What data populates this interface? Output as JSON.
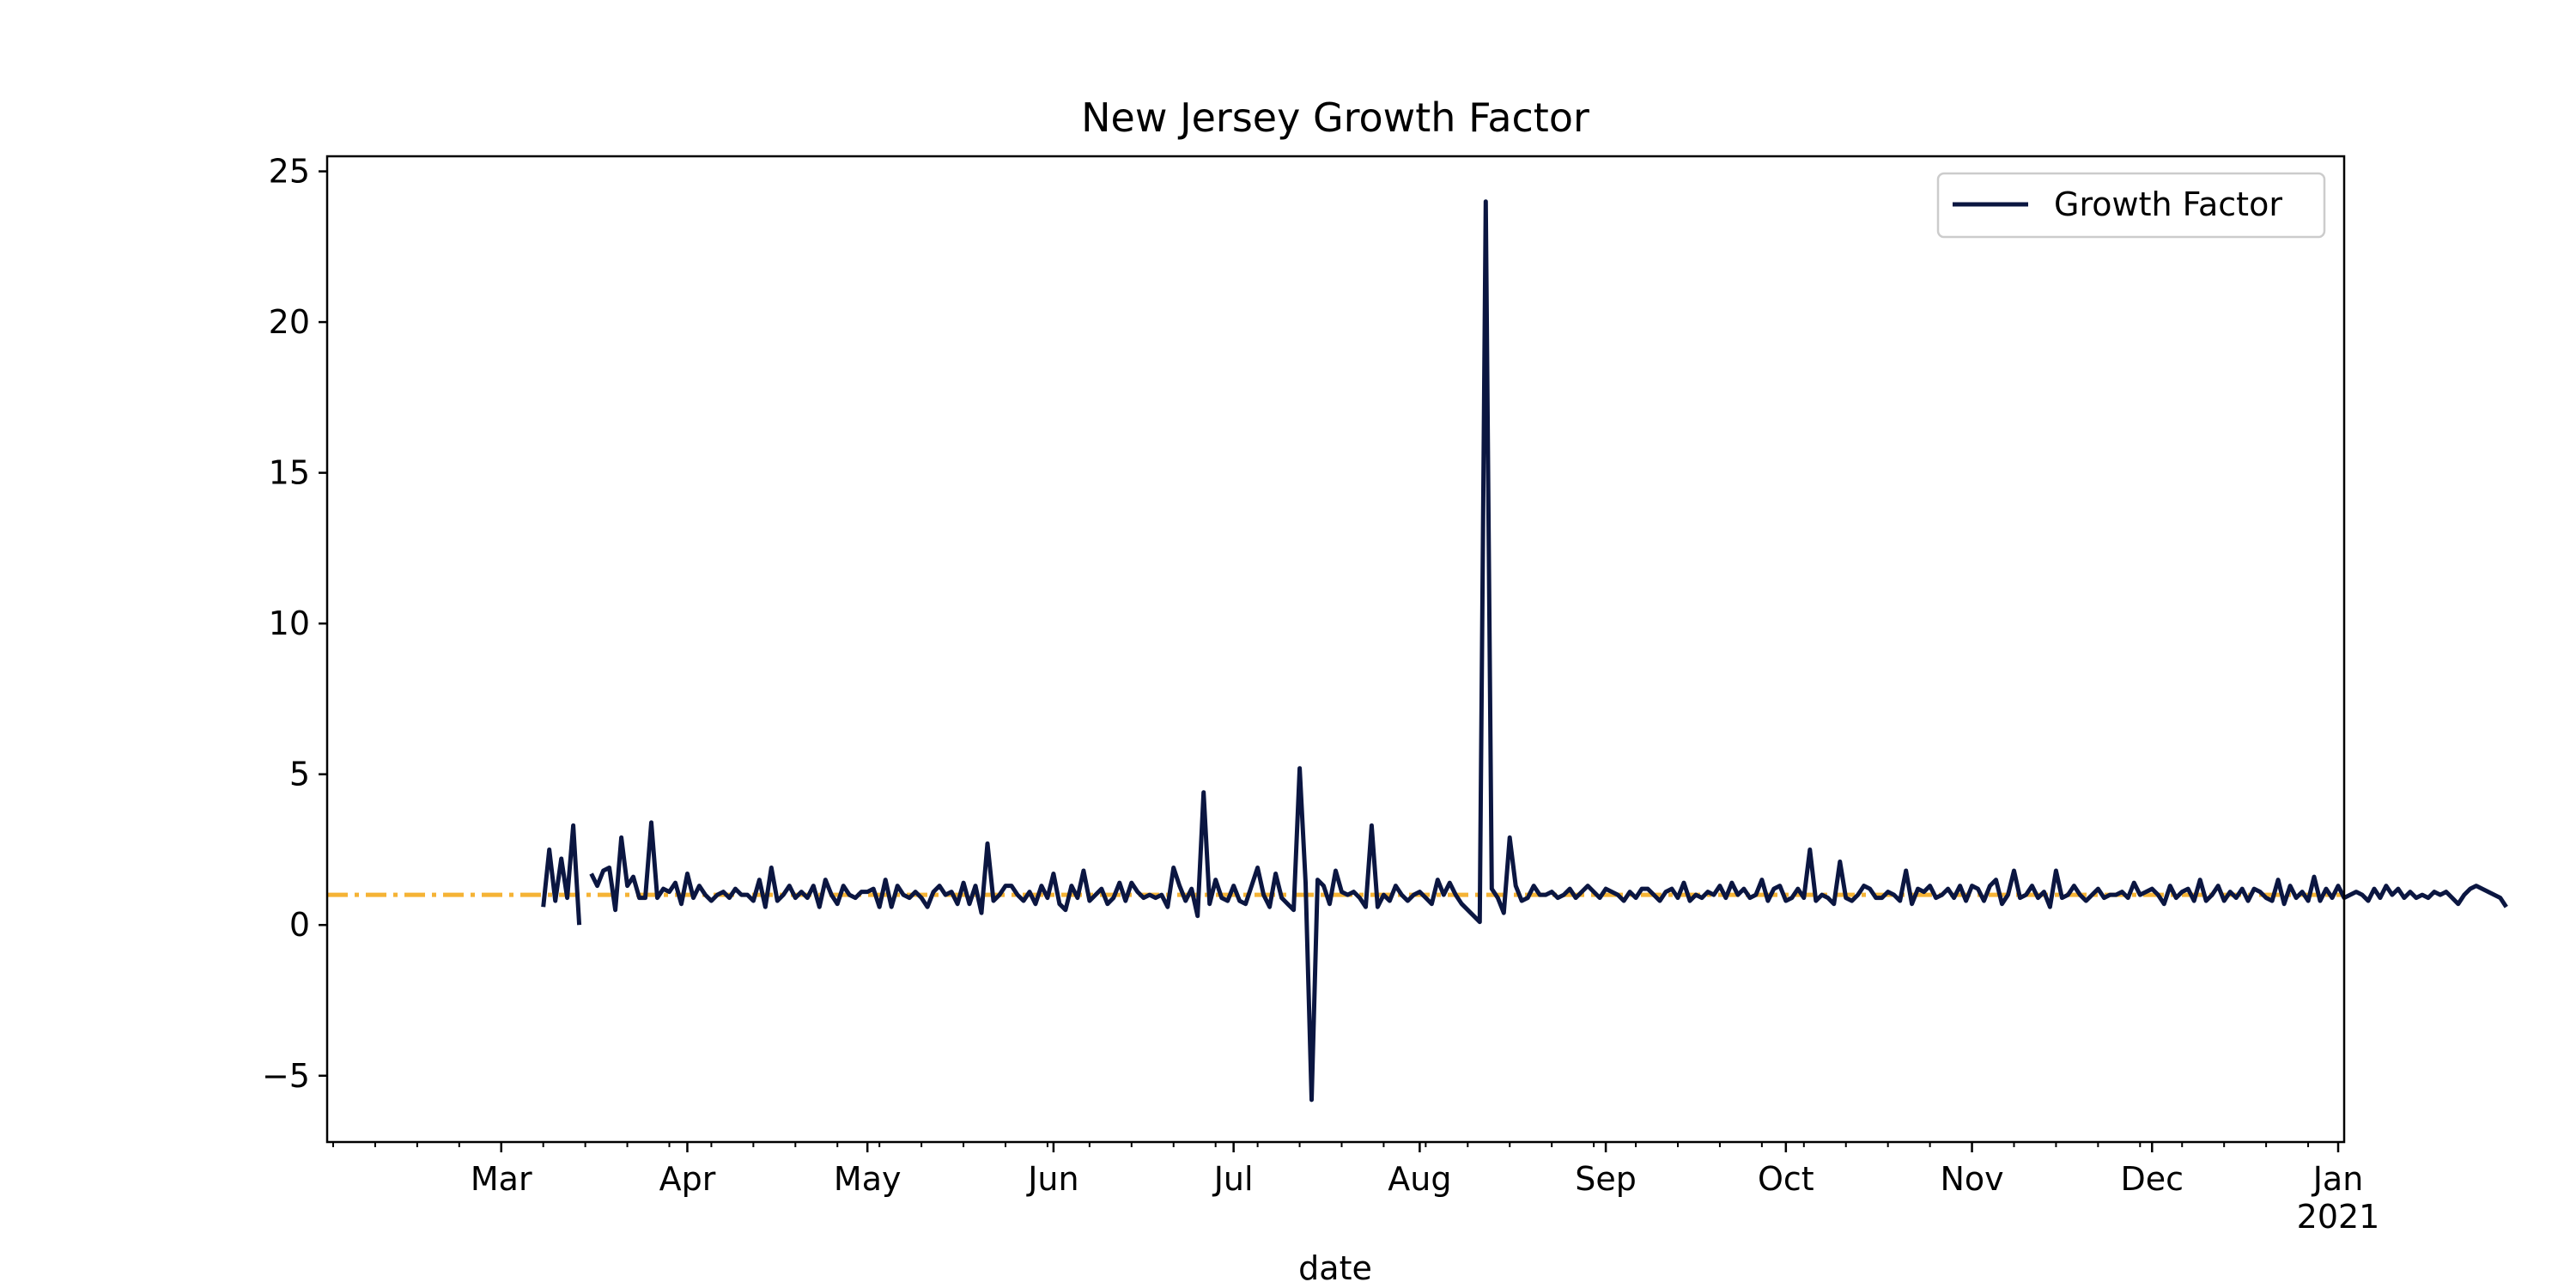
{
  "chart_data": {
    "type": "line",
    "title": "New Jersey Growth Factor",
    "xlabel": "date",
    "ylabel": "",
    "xlim": [
      "2020-02-01",
      "2021-01-02"
    ],
    "ylim": [
      -7.2,
      25.5
    ],
    "yticks": [
      -5,
      0,
      5,
      10,
      15,
      20,
      25
    ],
    "yticklabels": [
      "−5",
      "0",
      "5",
      "10",
      "15",
      "20",
      "25"
    ],
    "xticks_major": [
      {
        "date": "2020-03-01",
        "label": "Mar"
      },
      {
        "date": "2020-04-01",
        "label": "Apr"
      },
      {
        "date": "2020-05-01",
        "label": "May"
      },
      {
        "date": "2020-06-01",
        "label": "Jun"
      },
      {
        "date": "2020-07-01",
        "label": "Jul"
      },
      {
        "date": "2020-08-01",
        "label": "Aug"
      },
      {
        "date": "2020-09-01",
        "label": "Sep"
      },
      {
        "date": "2020-10-01",
        "label": "Oct"
      },
      {
        "date": "2020-11-01",
        "label": "Nov"
      },
      {
        "date": "2020-12-01",
        "label": "Dec"
      },
      {
        "date": "2021-01-01",
        "label": "Jan",
        "sublabel": "2021"
      }
    ],
    "grid": false,
    "legend": {
      "position": "top-right",
      "entries": [
        "Growth Factor"
      ]
    },
    "reference_line": {
      "y": 1,
      "color": "#f5b335",
      "style": "dash-dot"
    },
    "series": [
      {
        "name": "Growth Factor",
        "color": "#0b1641",
        "start_date": "2020-03-08",
        "values": [
          0.6,
          2.5,
          0.8,
          2.2,
          0.9,
          3.3,
          0.0,
          null,
          1.7,
          1.3,
          1.8,
          1.9,
          0.5,
          2.9,
          1.3,
          1.6,
          0.9,
          0.9,
          3.4,
          0.9,
          1.2,
          1.1,
          1.4,
          0.7,
          1.7,
          0.9,
          1.3,
          1.0,
          0.8,
          1.0,
          1.1,
          0.9,
          1.2,
          1.0,
          1.0,
          0.8,
          1.5,
          0.6,
          1.9,
          0.8,
          1.0,
          1.3,
          0.9,
          1.1,
          0.9,
          1.3,
          0.6,
          1.5,
          1.0,
          0.7,
          1.3,
          1.0,
          0.9,
          1.1,
          1.1,
          1.2,
          0.6,
          1.5,
          0.6,
          1.3,
          1.0,
          0.9,
          1.1,
          0.9,
          0.6,
          1.1,
          1.3,
          1.0,
          1.1,
          0.7,
          1.4,
          0.7,
          1.3,
          0.4,
          2.7,
          0.8,
          1.0,
          1.3,
          1.3,
          1.0,
          0.8,
          1.1,
          0.7,
          1.3,
          0.9,
          1.7,
          0.7,
          0.5,
          1.3,
          0.9,
          1.8,
          0.8,
          1.0,
          1.2,
          0.7,
          0.9,
          1.4,
          0.8,
          1.4,
          1.1,
          0.9,
          1.0,
          0.9,
          1.0,
          0.6,
          1.9,
          1.3,
          0.8,
          1.2,
          0.3,
          4.4,
          0.7,
          1.5,
          0.9,
          0.8,
          1.3,
          0.8,
          0.7,
          1.3,
          1.9,
          1.0,
          0.6,
          1.7,
          0.9,
          0.7,
          0.5,
          5.2,
          1.4,
          -5.8,
          1.5,
          1.3,
          0.7,
          1.8,
          1.1,
          1.0,
          1.1,
          0.9,
          0.6,
          3.3,
          0.6,
          1.0,
          0.8,
          1.3,
          1.0,
          0.8,
          1.0,
          1.1,
          0.9,
          0.7,
          1.5,
          1.0,
          1.4,
          1.0,
          0.7,
          0.5,
          0.3,
          0.1,
          24.0,
          1.2,
          0.9,
          0.4,
          2.9,
          1.3,
          0.8,
          0.9,
          1.3,
          1.0,
          1.0,
          1.1,
          0.9,
          1.0,
          1.2,
          0.9,
          1.1,
          1.3,
          1.1,
          0.9,
          1.2,
          1.1,
          1.0,
          0.8,
          1.1,
          0.9,
          1.2,
          1.2,
          1.0,
          0.8,
          1.1,
          1.2,
          0.9,
          1.4,
          0.8,
          1.0,
          0.9,
          1.1,
          1.0,
          1.3,
          0.9,
          1.4,
          1.0,
          1.2,
          0.9,
          1.0,
          1.5,
          0.8,
          1.2,
          1.3,
          0.8,
          0.9,
          1.2,
          0.9,
          2.5,
          0.8,
          1.0,
          0.9,
          0.7,
          2.1,
          0.9,
          0.8,
          1.0,
          1.3,
          1.2,
          0.9,
          0.9,
          1.1,
          1.0,
          0.8,
          1.8,
          0.7,
          1.2,
          1.1,
          1.3,
          0.9,
          1.0,
          1.2,
          0.9,
          1.3,
          0.8,
          1.3,
          1.2,
          0.8,
          1.3,
          1.5,
          0.7,
          1.0,
          1.8,
          0.9,
          1.0,
          1.3,
          0.9,
          1.1,
          0.6,
          1.8,
          0.9,
          1.0,
          1.3,
          1.0,
          0.8,
          1.0,
          1.2,
          0.9,
          1.0,
          1.0,
          1.1,
          0.9,
          1.4,
          1.0,
          1.1,
          1.2,
          1.0,
          0.7,
          1.3,
          0.9,
          1.1,
          1.2,
          0.8,
          1.5,
          0.8,
          1.0,
          1.3,
          0.8,
          1.1,
          0.9,
          1.2,
          0.8,
          1.2,
          1.1,
          0.9,
          0.8,
          1.5,
          0.7,
          1.3,
          0.9,
          1.1,
          0.8,
          1.6,
          0.8,
          1.2,
          0.9,
          1.3,
          0.9,
          1.0,
          1.1,
          1.0,
          0.8,
          1.2,
          0.9,
          1.3,
          1.0,
          1.2,
          0.9,
          1.1,
          0.9,
          1.0,
          0.9,
          1.1,
          1.0,
          1.1,
          0.9,
          0.7,
          1.0,
          1.2,
          1.3,
          1.2,
          1.1,
          1.0,
          0.9,
          0.6
        ]
      }
    ]
  }
}
